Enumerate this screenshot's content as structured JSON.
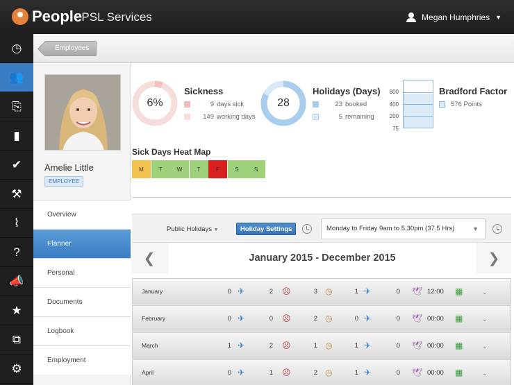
{
  "header": {
    "brand": "People",
    "subtitle": "- PSL Services",
    "user": "Megan Humphries"
  },
  "nav": [
    {
      "icon": "dashboard-icon",
      "glyph": "◷"
    },
    {
      "icon": "users-icon",
      "glyph": "👥"
    },
    {
      "icon": "documents-icon",
      "glyph": "⎘"
    },
    {
      "icon": "book-icon",
      "glyph": "▮"
    },
    {
      "icon": "check-icon",
      "glyph": "✔"
    },
    {
      "icon": "hammer-icon",
      "glyph": "⚒"
    },
    {
      "icon": "chart-icon",
      "glyph": "⌇"
    },
    {
      "icon": "help-icon",
      "glyph": "?"
    },
    {
      "icon": "megaphone-icon",
      "glyph": "📣"
    },
    {
      "icon": "star-icon",
      "glyph": "★"
    },
    {
      "icon": "hierarchy-icon",
      "glyph": "⧉"
    },
    {
      "icon": "gear-icon",
      "glyph": "⚙"
    }
  ],
  "breadcrumb": "Employees",
  "profile": {
    "name": "Amelie Little",
    "badge": "EMPLOYEE",
    "menu": [
      "Overview",
      "Planner",
      "Personal",
      "Documents",
      "Logbook",
      "Employment"
    ],
    "active": "Planner"
  },
  "sickness": {
    "title": "Sickness",
    "percent": "6%",
    "percent_value": 6,
    "days_sick": "9",
    "days_sick_label": "days sick",
    "working_days": "149",
    "working_days_label": "working days",
    "color": "#f3c1c1"
  },
  "holidays": {
    "title": "Holidays (Days)",
    "total": "28",
    "booked_value": 23,
    "booked": "23",
    "booked_label": "booked",
    "remaining": "5",
    "remaining_label": "remaining",
    "color": "#a9cdec"
  },
  "bradford": {
    "title": "Bradford Factor",
    "points": "576 Points",
    "axis": [
      "800",
      "400",
      "200",
      "75"
    ],
    "value": 576
  },
  "heatmap": {
    "title": "Sick Days Heat Map",
    "days": [
      {
        "label": "M",
        "color": "#f2c14e"
      },
      {
        "label": "T",
        "color": "#9ed17a"
      },
      {
        "label": "W",
        "color": "#9ed17a"
      },
      {
        "label": "T",
        "color": "#9ed17a"
      },
      {
        "label": "F",
        "color": "#d9201f"
      },
      {
        "label": "S",
        "color": "#9ed17a"
      },
      {
        "label": "S",
        "color": "#9ed17a"
      }
    ]
  },
  "controls": {
    "public_holidays": "Public Holidays",
    "holiday_settings": "Holiday Settings",
    "schedule": "Monday to Friday 9am to 5.30pm (37.5 Hrs)"
  },
  "year_range": "January 2015 - December 2015",
  "months": [
    {
      "name": "January",
      "c1": "0",
      "c2": "2",
      "c3": "3",
      "c4": "1",
      "c5": "0",
      "time": "12:00"
    },
    {
      "name": "February",
      "c1": "0",
      "c2": "0",
      "c3": "2",
      "c4": "0",
      "c5": "0",
      "time": "00:00"
    },
    {
      "name": "March",
      "c1": "1",
      "c2": "2",
      "c3": "1",
      "c4": "1",
      "c5": "0",
      "time": "00:00"
    },
    {
      "name": "April",
      "c1": "0",
      "c2": "1",
      "c3": "2",
      "c4": "1",
      "c5": "0",
      "time": "00:00"
    }
  ]
}
